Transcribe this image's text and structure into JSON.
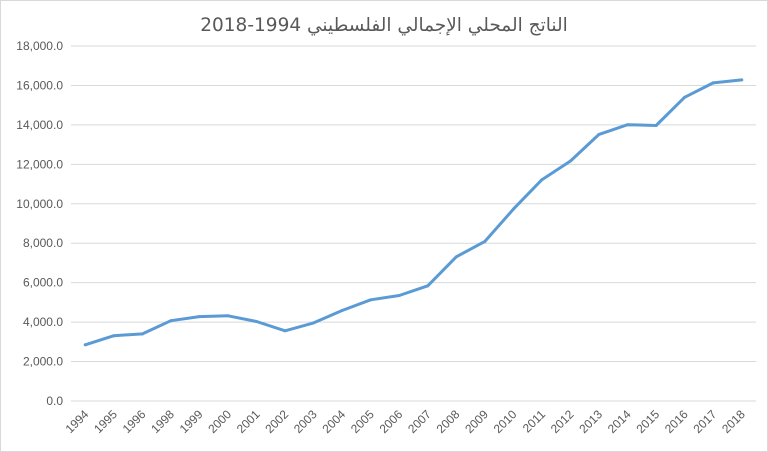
{
  "chart_data": {
    "type": "line",
    "title": "الناتج المحلي الإجمالي الفلسطيني 1994-2018",
    "xlabel": "",
    "ylabel": "",
    "ylim": [
      0,
      18000
    ],
    "y_tick_values": [
      0,
      2000,
      4000,
      6000,
      8000,
      10000,
      12000,
      14000,
      16000,
      18000
    ],
    "y_tick_labels": [
      "0.0",
      "2,000.0",
      "4,000.0",
      "6,000.0",
      "8,000.0",
      "10,000.0",
      "12,000.0",
      "14,000.0",
      "16,000.0",
      "18,000.0"
    ],
    "categories": [
      "1994",
      "1995",
      "1996",
      "1998",
      "1999",
      "2000",
      "2001",
      "2002",
      "2003",
      "2004",
      "2005",
      "2006",
      "2007",
      "2008",
      "2009",
      "2010",
      "2011",
      "2012",
      "2013",
      "2014",
      "2015",
      "2016",
      "2017",
      "2018"
    ],
    "series": [
      {
        "values": [
          2850,
          3310,
          3400,
          4070,
          4280,
          4320,
          4030,
          3560,
          3960,
          4590,
          5130,
          5350,
          5840,
          7310,
          8090,
          9730,
          11220,
          12170,
          13520,
          14010,
          13970,
          15400,
          16130,
          16280
        ],
        "color": "#5b9bd5"
      }
    ],
    "grid": true,
    "gridline_color": "#d9d9d9",
    "legend": "none"
  }
}
